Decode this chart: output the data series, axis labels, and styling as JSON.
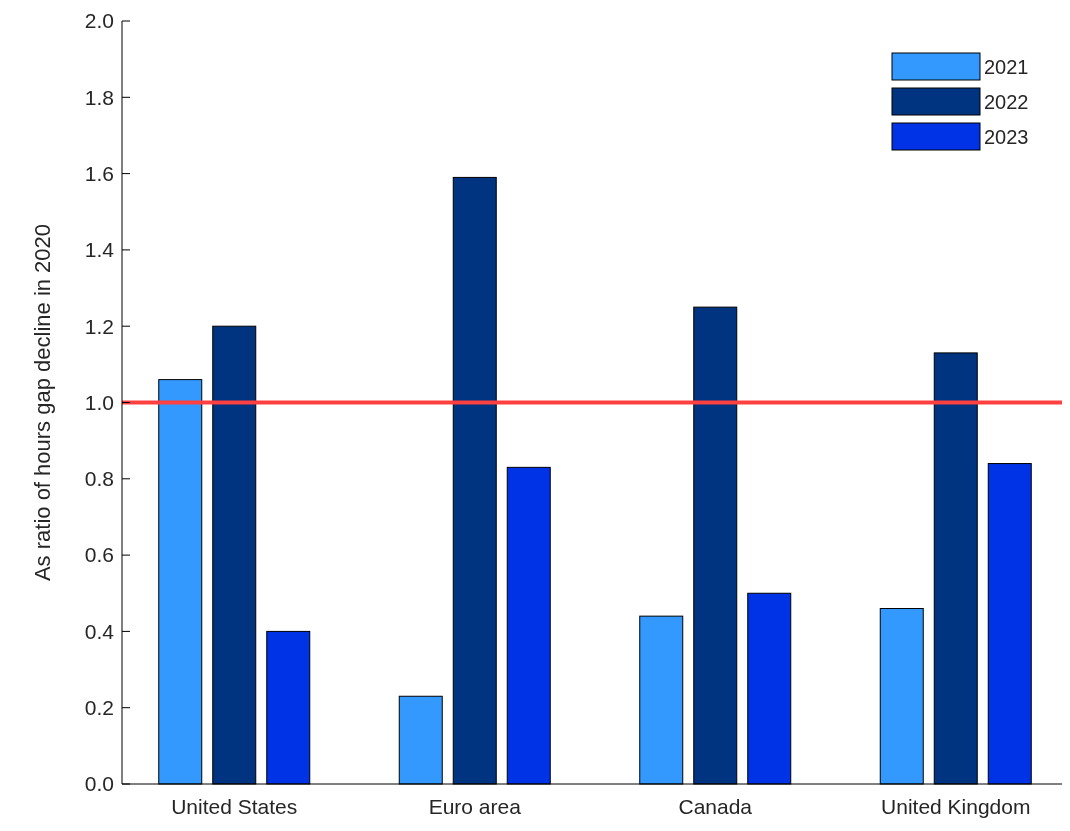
{
  "chart_data": {
    "type": "bar",
    "ylabel": "As ratio of hours gap decline in 2020",
    "categories": [
      "United States",
      "Euro area",
      "Canada",
      "United Kingdom"
    ],
    "series": [
      {
        "name": "2021",
        "color": "#3399ff",
        "values": [
          1.06,
          0.23,
          0.44,
          0.46
        ]
      },
      {
        "name": "2022",
        "color": "#003380",
        "values": [
          1.2,
          1.59,
          1.25,
          1.13
        ]
      },
      {
        "name": "2023",
        "color": "#0033e6",
        "values": [
          0.4,
          0.83,
          0.5,
          0.84
        ]
      }
    ],
    "ylim": [
      0,
      2
    ],
    "yticks": [
      {
        "value": 0,
        "label": "0.0"
      },
      {
        "value": 0.2,
        "label": "0.2"
      },
      {
        "value": 0.4,
        "label": "0.4"
      },
      {
        "value": 0.6,
        "label": "0.6"
      },
      {
        "value": 0.8,
        "label": "0.8"
      },
      {
        "value": 1,
        "label": "1.0"
      },
      {
        "value": 1.2,
        "label": "1.2"
      },
      {
        "value": 1.4,
        "label": "1.4"
      },
      {
        "value": 1.6,
        "label": "1.6"
      },
      {
        "value": 1.8,
        "label": "1.8"
      },
      {
        "value": 2,
        "label": "2.0"
      }
    ],
    "ref_lines": [
      {
        "axis": "y",
        "value": 1,
        "color": "#ff4040"
      }
    ],
    "legend": "top right",
    "grid": false
  }
}
